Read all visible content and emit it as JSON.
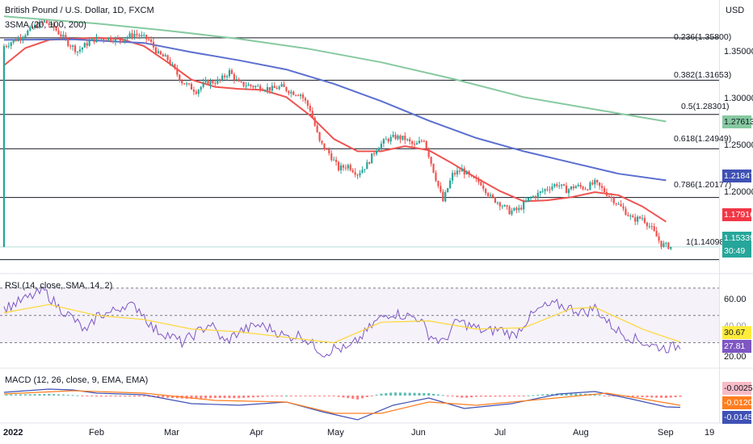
{
  "chart_data": {
    "type": "candlestick",
    "title": "British Pound / U.S. Dollar, 1D, FXCM",
    "currency": "USD",
    "x_labels": [
      "2022",
      "Feb",
      "Mar",
      "Apr",
      "May",
      "Jun",
      "Jul",
      "Aug",
      "Sep",
      "19"
    ],
    "price_axis": {
      "ticks": [
        "1.35000",
        "1.30000",
        "1.25000",
        "1.20000"
      ],
      "ylim": [
        1.128,
        1.395
      ]
    },
    "sma_legend": "3SMA (20, 100, 200)",
    "sma_series": [
      {
        "name": "SMA 20",
        "color": "#ef5350",
        "values": [
          [
            1,
            1.331
          ],
          [
            10,
            1.348
          ],
          [
            20,
            1.356
          ],
          [
            30,
            1.357
          ],
          [
            40,
            1.358
          ],
          [
            50,
            1.357
          ],
          [
            60,
            1.35
          ],
          [
            70,
            1.334
          ],
          [
            80,
            1.317
          ],
          [
            90,
            1.31
          ],
          [
            100,
            1.308
          ],
          [
            110,
            1.307
          ],
          [
            120,
            1.3
          ],
          [
            130,
            1.282
          ],
          [
            140,
            1.259
          ],
          [
            150,
            1.247
          ],
          [
            160,
            1.247
          ],
          [
            170,
            1.252
          ],
          [
            180,
            1.248
          ],
          [
            190,
            1.235
          ],
          [
            200,
            1.221
          ],
          [
            210,
            1.208
          ],
          [
            220,
            1.198
          ],
          [
            230,
            1.199
          ],
          [
            240,
            1.202
          ],
          [
            250,
            1.207
          ],
          [
            260,
            1.204
          ],
          [
            270,
            1.193
          ],
          [
            280,
            1.178
          ]
        ]
      },
      {
        "name": "SMA 100",
        "color": "#5b6fd0",
        "values": [
          [
            1,
            1.356
          ],
          [
            30,
            1.3565
          ],
          [
            60,
            1.353
          ],
          [
            80,
            1.344
          ],
          [
            100,
            1.336
          ],
          [
            120,
            1.327
          ],
          [
            140,
            1.313
          ],
          [
            160,
            1.296
          ],
          [
            180,
            1.277
          ],
          [
            200,
            1.26
          ],
          [
            220,
            1.247
          ],
          [
            240,
            1.236
          ],
          [
            260,
            1.225
          ],
          [
            280,
            1.2185
          ]
        ]
      },
      {
        "name": "SMA 200",
        "color": "#86c9a0",
        "values": [
          [
            1,
            1.379
          ],
          [
            40,
            1.372
          ],
          [
            70,
            1.365
          ],
          [
            100,
            1.357
          ],
          [
            130,
            1.347
          ],
          [
            160,
            1.334
          ],
          [
            190,
            1.318
          ],
          [
            220,
            1.3
          ],
          [
            250,
            1.288
          ],
          [
            280,
            1.2761
          ]
        ]
      }
    ],
    "close_path": [
      [
        1,
        1.35
      ],
      [
        8,
        1.359
      ],
      [
        14,
        1.369
      ],
      [
        18,
        1.374
      ],
      [
        22,
        1.368
      ],
      [
        28,
        1.353
      ],
      [
        32,
        1.345
      ],
      [
        38,
        1.356
      ],
      [
        44,
        1.358
      ],
      [
        50,
        1.356
      ],
      [
        56,
        1.362
      ],
      [
        62,
        1.356
      ],
      [
        66,
        1.342
      ],
      [
        70,
        1.337
      ],
      [
        76,
        1.315
      ],
      [
        82,
        1.306
      ],
      [
        86,
        1.314
      ],
      [
        92,
        1.316
      ],
      [
        96,
        1.325
      ],
      [
        100,
        1.313
      ],
      [
        108,
        1.31
      ],
      [
        114,
        1.308
      ],
      [
        118,
        1.31
      ],
      [
        122,
        1.305
      ],
      [
        126,
        1.303
      ],
      [
        130,
        1.288
      ],
      [
        134,
        1.256
      ],
      [
        138,
        1.245
      ],
      [
        142,
        1.23
      ],
      [
        146,
        1.233
      ],
      [
        150,
        1.225
      ],
      [
        154,
        1.234
      ],
      [
        158,
        1.25
      ],
      [
        162,
        1.258
      ],
      [
        166,
        1.261
      ],
      [
        170,
        1.259
      ],
      [
        174,
        1.252
      ],
      [
        178,
        1.259
      ],
      [
        182,
        1.228
      ],
      [
        186,
        1.198
      ],
      [
        190,
        1.224
      ],
      [
        194,
        1.229
      ],
      [
        198,
        1.22
      ],
      [
        202,
        1.216
      ],
      [
        206,
        1.202
      ],
      [
        210,
        1.196
      ],
      [
        214,
        1.188
      ],
      [
        218,
        1.19
      ],
      [
        222,
        1.2
      ],
      [
        226,
        1.205
      ],
      [
        230,
        1.211
      ],
      [
        234,
        1.215
      ],
      [
        238,
        1.209
      ],
      [
        242,
        1.213
      ],
      [
        246,
        1.211
      ],
      [
        250,
        1.216
      ],
      [
        254,
        1.208
      ],
      [
        258,
        1.199
      ],
      [
        262,
        1.19
      ],
      [
        266,
        1.18
      ],
      [
        270,
        1.182
      ],
      [
        274,
        1.171
      ],
      [
        278,
        1.156
      ],
      [
        282,
        1.1534
      ]
    ],
    "current_price": "1.15339",
    "countdown": "30:49",
    "price_tags": [
      {
        "label": "1.27613",
        "value": 1.27613,
        "color": "#86c9a0"
      },
      {
        "label": "1.21847",
        "value": 1.21847,
        "color": "#3f51b5"
      },
      {
        "label": "1.17916",
        "value": 1.17916,
        "color": "#f23645"
      }
    ],
    "fib_levels": [
      {
        "label": "0.236(1.35800)",
        "value": 1.358
      },
      {
        "label": "0.382(1.31653)",
        "value": 1.31653
      },
      {
        "label": "0.5(1.28301)",
        "value": 1.28301
      },
      {
        "label": "0.618(1.24949)",
        "value": 1.24949
      },
      {
        "label": "0.786(1.20177)",
        "value": 1.20177
      },
      {
        "label": "1(1.14098)",
        "value": 1.14098
      }
    ],
    "rsi": {
      "legend": "RSI (14, close, SMA, 14, 2)",
      "ticks": [
        "60.00",
        "40.00",
        "20.00"
      ],
      "ylim": [
        12,
        80
      ],
      "band": [
        30,
        70
      ],
      "rsi_tag": "27.81",
      "ma_tag": "30.67",
      "rsi_values": [
        [
          1,
          55
        ],
        [
          10,
          62
        ],
        [
          18,
          68
        ],
        [
          24,
          56
        ],
        [
          30,
          48
        ],
        [
          36,
          37
        ],
        [
          40,
          50
        ],
        [
          46,
          52
        ],
        [
          52,
          58
        ],
        [
          58,
          55
        ],
        [
          64,
          40
        ],
        [
          70,
          36
        ],
        [
          76,
          30
        ],
        [
          82,
          37
        ],
        [
          88,
          44
        ],
        [
          94,
          30
        ],
        [
          100,
          38
        ],
        [
          108,
          43
        ],
        [
          114,
          40
        ],
        [
          120,
          34
        ],
        [
          126,
          36
        ],
        [
          130,
          30
        ],
        [
          136,
          22
        ],
        [
          140,
          26
        ],
        [
          146,
          25
        ],
        [
          152,
          35
        ],
        [
          158,
          46
        ],
        [
          164,
          52
        ],
        [
          170,
          50
        ],
        [
          176,
          48
        ],
        [
          180,
          36
        ],
        [
          186,
          30
        ],
        [
          192,
          46
        ],
        [
          198,
          42
        ],
        [
          204,
          38
        ],
        [
          210,
          40
        ],
        [
          216,
          35
        ],
        [
          222,
          48
        ],
        [
          228,
          56
        ],
        [
          234,
          58
        ],
        [
          240,
          55
        ],
        [
          246,
          52
        ],
        [
          250,
          56
        ],
        [
          256,
          44
        ],
        [
          262,
          36
        ],
        [
          268,
          32
        ],
        [
          274,
          28
        ],
        [
          280,
          26
        ],
        [
          286,
          27.81
        ]
      ],
      "ma_values": [
        [
          1,
          52
        ],
        [
          20,
          58
        ],
        [
          40,
          50
        ],
        [
          60,
          47
        ],
        [
          80,
          40
        ],
        [
          100,
          38
        ],
        [
          120,
          34
        ],
        [
          140,
          30
        ],
        [
          160,
          45
        ],
        [
          180,
          46
        ],
        [
          200,
          40
        ],
        [
          220,
          41
        ],
        [
          240,
          55
        ],
        [
          250,
          56
        ],
        [
          260,
          48
        ],
        [
          270,
          40
        ],
        [
          280,
          34
        ],
        [
          286,
          30.67
        ]
      ]
    },
    "macd": {
      "legend": "MACD (12, 26, close, 9, EMA, EMA)",
      "tags": [
        {
          "label": "-0.00252",
          "color": "#f8bbc6",
          "text_color": "#131722"
        },
        {
          "label": "-0.01205",
          "color": "#ff7d1f",
          "text_color": "#ffffff"
        },
        {
          "label": "-0.01457",
          "color": "#3f51b5",
          "text_color": "#ffffff"
        }
      ],
      "macd_values": [
        [
          1,
          0.004
        ],
        [
          20,
          0.008
        ],
        [
          30,
          0.007
        ],
        [
          40,
          0.003
        ],
        [
          60,
          0.001
        ],
        [
          80,
          -0.01
        ],
        [
          100,
          -0.012
        ],
        [
          120,
          -0.008
        ],
        [
          135,
          -0.02
        ],
        [
          150,
          -0.03
        ],
        [
          165,
          -0.012
        ],
        [
          180,
          -0.003
        ],
        [
          195,
          -0.016
        ],
        [
          215,
          -0.01
        ],
        [
          235,
          0.002
        ],
        [
          250,
          0.005
        ],
        [
          265,
          -0.004
        ],
        [
          280,
          -0.014
        ],
        [
          286,
          -0.01457
        ]
      ],
      "signal_values": [
        [
          1,
          0.002
        ],
        [
          30,
          0.006
        ],
        [
          60,
          0.003
        ],
        [
          90,
          -0.006
        ],
        [
          120,
          -0.008
        ],
        [
          140,
          -0.022
        ],
        [
          160,
          -0.022
        ],
        [
          180,
          -0.008
        ],
        [
          200,
          -0.012
        ],
        [
          230,
          -0.004
        ],
        [
          255,
          0.003
        ],
        [
          270,
          -0.004
        ],
        [
          286,
          -0.01205
        ]
      ]
    }
  }
}
